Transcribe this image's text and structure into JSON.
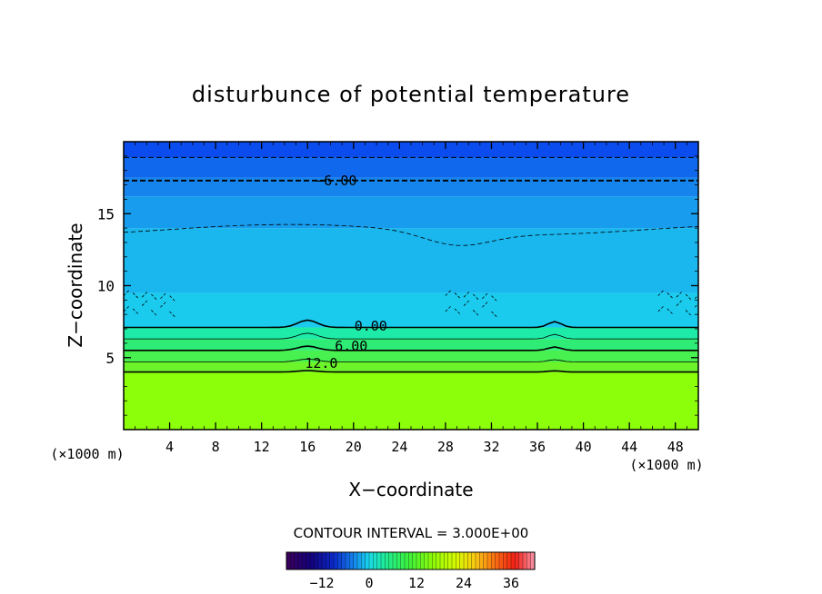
{
  "chart_data": {
    "type": "heatmap",
    "title": "disturbunce of potential temperature",
    "xlabel": "X−coordinate",
    "ylabel": "Z−coordinate",
    "x_unit_label_left": "(×1000 m)",
    "x_unit_label_right": "(×1000 m)",
    "xlim": [
      0,
      50
    ],
    "ylim": [
      0,
      20
    ],
    "x_ticks": [
      4,
      8,
      12,
      16,
      20,
      24,
      28,
      32,
      36,
      40,
      44,
      48
    ],
    "y_ticks": [
      5,
      10,
      15
    ],
    "contour_interval_label": "CONTOUR INTERVAL = 3.000E+00",
    "contour_labels": [
      {
        "text": "−6.00",
        "x": 18.5,
        "z": 17.3
      },
      {
        "text": "0.00",
        "x": 21.5,
        "z": 7.2
      },
      {
        "text": "6.00",
        "x": 19.8,
        "z": 5.8
      },
      {
        "text": "12.0",
        "x": 17.2,
        "z": 4.6
      }
    ],
    "colorbar": {
      "min": -21,
      "max": 42,
      "ticks": [
        -12,
        0,
        12,
        24,
        36
      ]
    },
    "bands": [
      {
        "z0": 0.0,
        "z1": 4.0,
        "value": 15,
        "color": "#8cff0a"
      },
      {
        "z0": 4.0,
        "z1": 4.7,
        "value": 13,
        "color": "#6cf32a"
      },
      {
        "z0": 4.7,
        "z1": 5.5,
        "value": 10,
        "color": "#48f050"
      },
      {
        "z0": 5.5,
        "z1": 6.3,
        "value": 7,
        "color": "#2fec76"
      },
      {
        "z0": 6.3,
        "z1": 7.1,
        "value": 3,
        "color": "#1eeba8"
      },
      {
        "z0": 7.1,
        "z1": 9.5,
        "value": -1,
        "color": "#1acbee"
      },
      {
        "z0": 9.5,
        "z1": 14.0,
        "value": -2,
        "color": "#1ab6ee"
      },
      {
        "z0": 14.0,
        "z1": 16.2,
        "value": -4,
        "color": "#189cee"
      },
      {
        "z0": 16.2,
        "z1": 17.5,
        "value": -5,
        "color": "#1584ec"
      },
      {
        "z0": 17.5,
        "z1": 18.9,
        "value": -7,
        "color": "#1068ec"
      },
      {
        "z0": 18.9,
        "z1": 20.0,
        "value": -9,
        "color": "#0a4ced"
      }
    ]
  }
}
